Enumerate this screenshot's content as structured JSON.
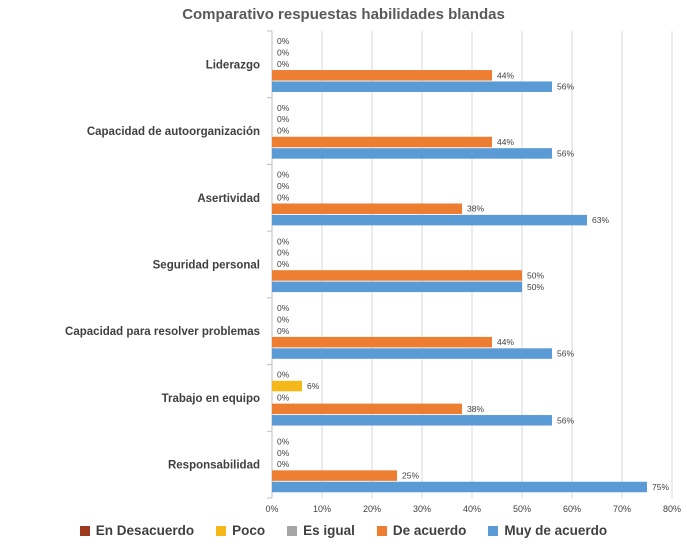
{
  "chart_data": {
    "type": "bar",
    "orientation": "horizontal",
    "title": "Comparativo respuestas habilidades blandas",
    "categories": [
      "Liderazgo",
      "Capacidad de autoorganización",
      "Asertividad",
      "Seguridad personal",
      "Capacidad para resolver problemas",
      "Trabajo en equipo",
      "Responsabilidad"
    ],
    "series": [
      {
        "name": "En Desacuerdo",
        "color": "#9e3a1e",
        "values": [
          0,
          0,
          0,
          0,
          0,
          0,
          0
        ],
        "labels": [
          "0%",
          "0%",
          "0%",
          "0%",
          "0%",
          "0%",
          "0%"
        ]
      },
      {
        "name": "Poco",
        "color": "#f5b819",
        "values": [
          0,
          0,
          0,
          0,
          0,
          6,
          0
        ],
        "labels": [
          "0%",
          "0%",
          "0%",
          "0%",
          "0%",
          "6%",
          "0%"
        ]
      },
      {
        "name": "Es igual",
        "color": "#a5a5a5",
        "values": [
          0,
          0,
          0,
          0,
          0,
          0,
          0
        ],
        "labels": [
          "0%",
          "0%",
          "0%",
          "0%",
          "0%",
          "0%",
          "0%"
        ]
      },
      {
        "name": "De acuerdo",
        "color": "#ed7d31",
        "values": [
          44,
          44,
          38,
          50,
          44,
          38,
          25
        ],
        "labels": [
          "44%",
          "44%",
          "38%",
          "50%",
          "44%",
          "38%",
          "25%"
        ]
      },
      {
        "name": "Muy de acuerdo",
        "color": "#5b9bd5",
        "values": [
          56,
          56,
          63,
          50,
          56,
          56,
          75
        ],
        "labels": [
          "56%",
          "56%",
          "63%",
          "50%",
          "56%",
          "56%",
          "75%"
        ]
      }
    ],
    "x_ticks": [
      "0%",
      "10%",
      "20%",
      "30%",
      "40%",
      "50%",
      "60%",
      "70%",
      "80%"
    ],
    "xlim": [
      0,
      80
    ],
    "xlabel": "",
    "ylabel": "",
    "grid": true,
    "legend_position": "bottom"
  }
}
